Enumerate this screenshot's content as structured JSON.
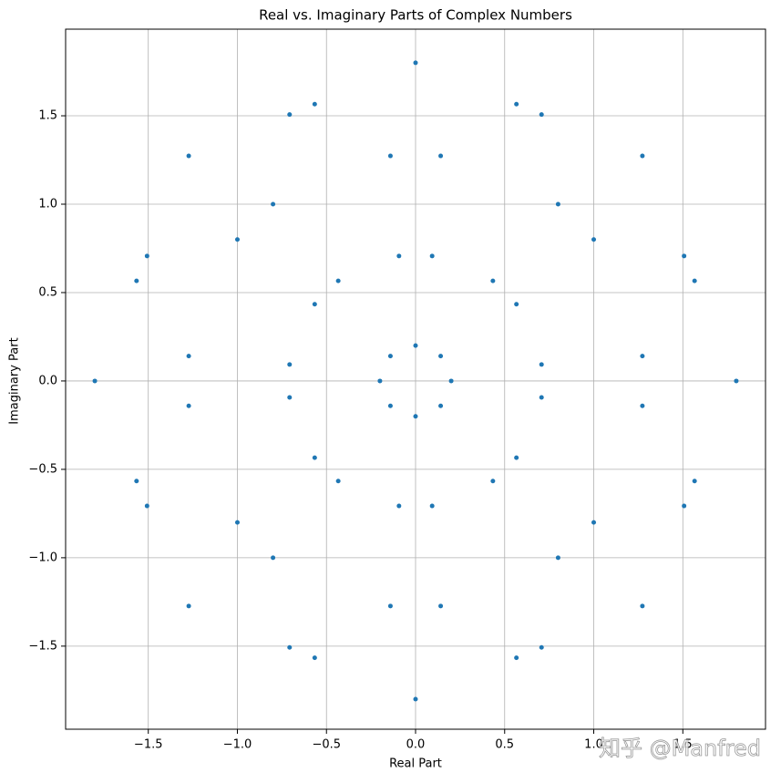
{
  "chart_data": {
    "type": "scatter",
    "title": "Real vs. Imaginary Parts of Complex Numbers",
    "x_label": "Real Part",
    "y_label": "Imaginary Part",
    "watermark": "知乎 @Manfred",
    "color": "#1f77b4",
    "grid": true,
    "xlim": [
      -1.964,
      1.964
    ],
    "ylim": [
      -1.97,
      1.99
    ],
    "xticks": [
      {
        "value": -1.5,
        "label": "−1.5"
      },
      {
        "value": -1,
        "label": "−1.0"
      },
      {
        "value": -0.5,
        "label": "−0.5"
      },
      {
        "value": 0,
        "label": "0.0"
      },
      0.5,
      {
        "value": 1,
        "label": "1.0"
      },
      1.5
    ],
    "yticks": [
      {
        "value": -1.5,
        "label": "−1.5"
      },
      {
        "value": -1,
        "label": "−1.0"
      },
      {
        "value": -0.5,
        "label": "−0.5"
      },
      {
        "value": 0,
        "label": "0.0"
      },
      0.5,
      {
        "value": 1,
        "label": "1.0"
      },
      1.5
    ],
    "x": [
      1.8,
      1.566,
      1,
      0.434,
      0.2,
      0.434,
      1,
      1.566,
      1.507,
      1.273,
      0.707,
      0.141,
      -0.093,
      0.141,
      0.707,
      1.273,
      0.8,
      0.566,
      0,
      -0.566,
      -0.8,
      -0.566,
      0,
      0.566,
      0.093,
      -0.141,
      -0.707,
      -1.273,
      -1.507,
      -1.273,
      -0.707,
      -0.141,
      -0.2,
      -0.434,
      -1,
      -1.566,
      -1.8,
      -1.566,
      -1,
      -0.434,
      0.093,
      -0.141,
      -0.707,
      -1.273,
      -1.507,
      -1.273,
      -0.707,
      -0.141,
      0.8,
      0.566,
      0,
      -0.566,
      -0.8,
      -0.566,
      0,
      0.566,
      1.507,
      1.273,
      0.707,
      0.141,
      -0.093,
      0.141,
      0.707,
      1.273
    ],
    "y": [
      0,
      0.566,
      0.8,
      0.566,
      0,
      -0.566,
      -0.8,
      -0.566,
      0.707,
      1.273,
      1.507,
      1.273,
      0.707,
      0.141,
      -0.093,
      0.141,
      1,
      1.566,
      1.8,
      1.566,
      1,
      0.434,
      0.2,
      0.434,
      0.707,
      1.273,
      1.507,
      1.273,
      0.707,
      0.141,
      -0.093,
      0.141,
      0,
      0.566,
      0.8,
      0.566,
      0,
      -0.566,
      -0.8,
      -0.566,
      -0.707,
      -0.141,
      0.093,
      -0.141,
      -0.707,
      -1.273,
      -1.507,
      -1.273,
      -1,
      -0.434,
      -0.2,
      -0.434,
      -1,
      -1.566,
      -1.8,
      -1.566,
      -0.707,
      -0.141,
      0.093,
      -0.141,
      -0.707,
      -1.273,
      -1.507,
      -1.273
    ]
  }
}
